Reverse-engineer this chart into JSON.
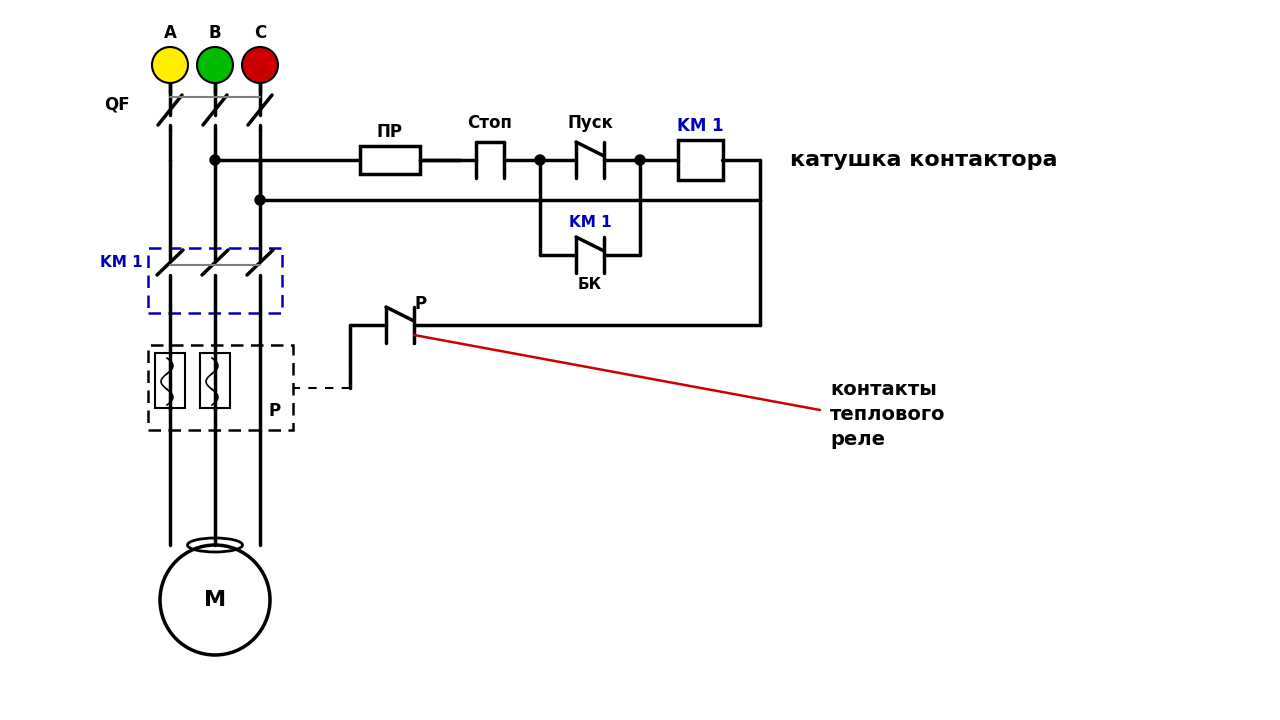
{
  "bg_color": "#ffffff",
  "line_color": "#000000",
  "blue_color": "#0000bb",
  "red_color": "#cc0000",
  "phase_A_color": "#ffee00",
  "phase_B_color": "#00bb00",
  "phase_C_color": "#cc0000",
  "label_katushka": "катушка контактора",
  "label_kontakty": "контакты\nтеплового\nреле",
  "label_stop": "Стоп",
  "label_pusk": "Пуск",
  "label_PR": "ПР",
  "label_QF": "QF",
  "label_BK": "БК",
  "label_KM1": "KM 1",
  "label_M": "M",
  "label_P": "P",
  "label_A": "A",
  "label_B": "B",
  "label_C": "C",
  "figsize": [
    12.8,
    7.2
  ],
  "dpi": 100
}
